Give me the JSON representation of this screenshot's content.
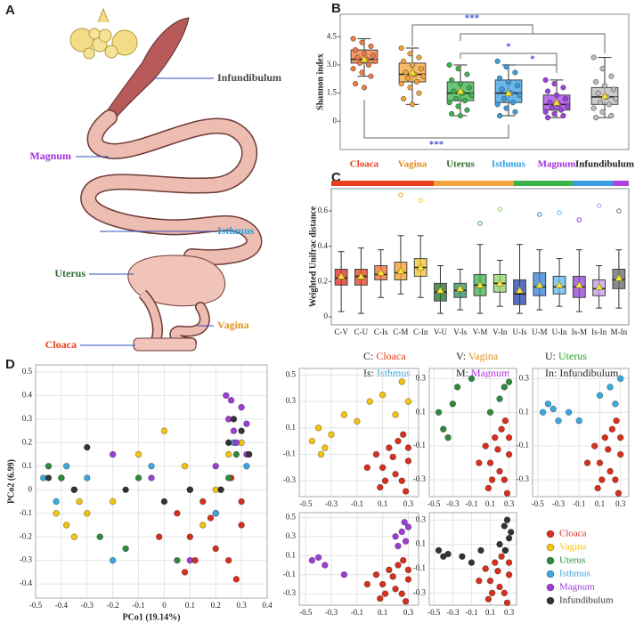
{
  "panel_labels": [
    "A",
    "B",
    "C",
    "D"
  ],
  "anatomy": {
    "labels": [
      {
        "text": "Infundibulum",
        "color": "#4a4a4a"
      },
      {
        "text": "Magnum",
        "color": "#a030e0"
      },
      {
        "text": "Isthmus",
        "color": "#2aa0e0"
      },
      {
        "text": "Uterus",
        "color": "#2e6b2e"
      },
      {
        "text": "Vagina",
        "color": "#e0901e"
      },
      {
        "text": "Cloaca",
        "color": "#e8401e"
      }
    ]
  },
  "chart_data": [
    {
      "type": "box",
      "ylabel": "Shannon index",
      "categories": [
        "Cloaca",
        "Vagina",
        "Uterus",
        "Isthmus",
        "Magnum",
        "Infundibulum"
      ],
      "label_colors": [
        "#e8401e",
        "#e0901e",
        "#2e6b2e",
        "#2aa0e0",
        "#a030e0",
        "#222222"
      ],
      "colors": [
        "#f07a40",
        "#f3a33a",
        "#3cb34a",
        "#3a9ee0",
        "#a040e0",
        "#bbbbbb"
      ],
      "ylim": [
        -1.5,
        5.7
      ],
      "yticks": [
        0,
        1.5,
        {
          "value": 3,
          "label": "3.0"
        },
        4.5
      ],
      "annotations": [
        "***",
        "*",
        "*",
        "***"
      ],
      "boxes": [
        {
          "whislo": 2.4,
          "q1": 3.1,
          "med": 3.3,
          "q3": 3.8,
          "whishi": 4.4,
          "mean": 3.3,
          "points": [
            4.4,
            4.2,
            4.0,
            3.8,
            3.6,
            3.5,
            3.4,
            3.3,
            3.2,
            3.1,
            3.0,
            2.8,
            2.6,
            2.4,
            2.0,
            1.8
          ]
        },
        {
          "whislo": 0.9,
          "q1": 2.1,
          "med": 2.5,
          "q3": 3.1,
          "whishi": 3.9,
          "mean": 2.6,
          "points": [
            3.9,
            3.6,
            3.4,
            3.2,
            3.0,
            2.8,
            2.6,
            2.5,
            2.4,
            2.3,
            2.1,
            2.0,
            1.8,
            1.5,
            1.2,
            0.9
          ]
        },
        {
          "whislo": 0.3,
          "q1": 1.1,
          "med": 1.5,
          "q3": 2.1,
          "whishi": 3.0,
          "mean": 1.6,
          "points": [
            3.0,
            2.8,
            2.5,
            2.2,
            2.0,
            1.8,
            1.6,
            1.5,
            1.4,
            1.2,
            1.1,
            1.0,
            0.8,
            0.6,
            0.4,
            0.3
          ]
        },
        {
          "whislo": 0.3,
          "q1": 1.0,
          "med": 1.5,
          "q3": 2.2,
          "whishi": 3.0,
          "mean": 1.5,
          "points": [
            3.2,
            2.9,
            2.6,
            2.3,
            2.1,
            1.9,
            1.7,
            1.5,
            1.4,
            1.2,
            1.0,
            0.9,
            0.7,
            0.5,
            0.3
          ]
        },
        {
          "whislo": 0.2,
          "q1": 0.6,
          "med": 0.9,
          "q3": 1.4,
          "whishi": 2.2,
          "mean": 1.0,
          "points": [
            2.2,
            2.0,
            1.8,
            1.6,
            1.4,
            1.2,
            1.0,
            0.9,
            0.8,
            0.7,
            0.6,
            0.5,
            0.4,
            0.3,
            0.2
          ]
        },
        {
          "whislo": 0.2,
          "q1": 0.9,
          "med": 1.3,
          "q3": 1.8,
          "whishi": 3.4,
          "mean": 1.35,
          "points": [
            3.4,
            2.8,
            2.4,
            2.1,
            1.9,
            1.7,
            1.5,
            1.3,
            1.2,
            1.0,
            0.9,
            0.7,
            0.5,
            0.3,
            0.2
          ]
        }
      ]
    },
    {
      "type": "box",
      "ylabel": "Weighted Unifrac distance",
      "categories": [
        "C-V",
        "C-U",
        "C-Is",
        "C-M",
        "C-In",
        "V-U",
        "V-Is",
        "V-M",
        "V-In",
        "U-Is",
        "U-M",
        "U-In",
        "Is-M",
        "Is-In",
        "M-In"
      ],
      "colors": [
        "#d9281c",
        "#e03c1e",
        "#f06a2a",
        "#f39c2a",
        "#f2c230",
        "#1f6b2a",
        "#2e8b57",
        "#3cae4a",
        "#8fd16a",
        "#1f3fa8",
        "#2f7fd8",
        "#5fb8ee",
        "#8e3fd4",
        "#c49be8",
        "#666666"
      ],
      "ylim": [
        -0.045,
        0.726
      ],
      "yticks": [
        0,
        0.2,
        0.4,
        0.6
      ],
      "boxes": [
        {
          "whislo": 0.03,
          "q1": 0.18,
          "med": 0.22,
          "q3": 0.27,
          "whishi": 0.37,
          "mean": 0.23
        },
        {
          "whislo": 0.02,
          "q1": 0.18,
          "med": 0.23,
          "q3": 0.27,
          "whishi": 0.39,
          "mean": 0.23
        },
        {
          "whislo": 0.11,
          "q1": 0.21,
          "med": 0.24,
          "q3": 0.29,
          "whishi": 0.38,
          "mean": 0.25
        },
        {
          "whislo": 0.13,
          "q1": 0.21,
          "med": 0.25,
          "q3": 0.31,
          "whishi": 0.46,
          "mean": 0.26,
          "outliers": [
            0.69
          ]
        },
        {
          "whislo": 0.11,
          "q1": 0.23,
          "med": 0.28,
          "q3": 0.33,
          "whishi": 0.46,
          "mean": 0.28,
          "outliers": [
            0.66
          ]
        },
        {
          "whislo": 0.02,
          "q1": 0.09,
          "med": 0.14,
          "q3": 0.19,
          "whishi": 0.29,
          "mean": 0.15
        },
        {
          "whislo": 0.04,
          "q1": 0.11,
          "med": 0.15,
          "q3": 0.19,
          "whishi": 0.27,
          "mean": 0.16
        },
        {
          "whislo": 0.02,
          "q1": 0.12,
          "med": 0.18,
          "q3": 0.24,
          "whishi": 0.41,
          "mean": 0.18,
          "outliers": [
            0.53
          ]
        },
        {
          "whislo": 0.06,
          "q1": 0.14,
          "med": 0.19,
          "q3": 0.24,
          "whishi": 0.32,
          "mean": 0.19,
          "outliers": [
            0.61
          ]
        },
        {
          "whislo": 0.02,
          "q1": 0.07,
          "med": 0.13,
          "q3": 0.21,
          "whishi": 0.41,
          "mean": 0.15
        },
        {
          "whislo": 0.04,
          "q1": 0.12,
          "med": 0.17,
          "q3": 0.25,
          "whishi": 0.38,
          "mean": 0.18,
          "outliers": [
            0.58
          ]
        },
        {
          "whislo": 0.06,
          "q1": 0.13,
          "med": 0.17,
          "q3": 0.23,
          "whishi": 0.33,
          "mean": 0.18,
          "outliers": [
            0.59
          ]
        },
        {
          "whislo": 0.03,
          "q1": 0.11,
          "med": 0.17,
          "q3": 0.23,
          "whishi": 0.38,
          "mean": 0.18,
          "outliers": [
            0.55
          ]
        },
        {
          "whislo": 0.05,
          "q1": 0.12,
          "med": 0.16,
          "q3": 0.21,
          "whishi": 0.29,
          "mean": 0.17,
          "outliers": [
            0.63
          ]
        },
        {
          "whislo": 0.05,
          "q1": 0.16,
          "med": 0.21,
          "q3": 0.27,
          "whishi": 0.38,
          "mean": 0.22,
          "outliers": [
            0.6
          ]
        }
      ],
      "legend": [
        {
          "abbr": "C:",
          "name": "Cloaca",
          "color": "#e8401e"
        },
        {
          "abbr": "V:",
          "name": "Vagina",
          "color": "#e0901e"
        },
        {
          "abbr": "U:",
          "name": "Uterus",
          "color": "#2e9b2e"
        },
        {
          "abbr": "Is:",
          "name": "Isthmus",
          "color": "#2aa0e0"
        },
        {
          "abbr": "M:",
          "name": "Magnum",
          "color": "#b030e0"
        },
        {
          "abbr": "In:",
          "name": "Infundibulum",
          "color": "#222222"
        }
      ]
    },
    {
      "type": "scatter",
      "xlabel": "PCo1 (19.14%)",
      "ylabel": "PCo2 (6.99)",
      "grid": true,
      "xlim": [
        -0.5,
        0.4
      ],
      "ylim": [
        -0.46,
        0.53
      ],
      "xticks": [
        -0.5,
        -0.4,
        -0.3,
        -0.2,
        -0.1,
        0,
        0.1,
        0.2,
        0.3,
        0.4
      ],
      "yticks": [
        -0.4,
        -0.3,
        -0.2,
        -0.1,
        0,
        0.1,
        0.2,
        0.3,
        0.4,
        0.5
      ],
      "series": [
        {
          "name": "Cloaca",
          "color": "#d7301f",
          "x": [
            0.05,
            0.1,
            0.15,
            0.2,
            0.25,
            0.28,
            0.3,
            0.22,
            0.12,
            0.18,
            0.26,
            0.08,
            -0.02,
            0.3
          ],
          "y": [
            -0.1,
            -0.2,
            -0.05,
            -0.25,
            -0.3,
            -0.38,
            -0.15,
            0.0,
            -0.3,
            -0.12,
            0.05,
            -0.35,
            -0.2,
            -0.05
          ]
        },
        {
          "name": "Vagina",
          "color": "#f2c40f",
          "x": [
            -0.42,
            -0.38,
            -0.35,
            -0.33,
            -0.4,
            -0.3,
            -0.1,
            0.0,
            0.08,
            0.2,
            0.25,
            0.3,
            -0.2,
            0.15
          ],
          "y": [
            -0.1,
            -0.15,
            -0.2,
            -0.05,
            0.05,
            -0.1,
            0.15,
            0.25,
            0.1,
            0.0,
            0.15,
            0.2,
            -0.05,
            -0.15
          ]
        },
        {
          "name": "Uterus",
          "color": "#2e8b3e",
          "x": [
            -0.45,
            -0.4,
            -0.35,
            -0.25,
            -0.1,
            0.05,
            0.2,
            0.25,
            -0.15,
            0.28
          ],
          "y": [
            0.1,
            0.05,
            0.0,
            -0.2,
            0.05,
            -0.3,
            -0.1,
            0.05,
            -0.25,
            0.15
          ]
        },
        {
          "name": "Isthmus",
          "color": "#3aa8dd",
          "x": [
            -0.47,
            -0.42,
            -0.38,
            -0.3,
            -0.2,
            -0.05,
            0.1,
            0.2,
            0.27,
            0.32
          ],
          "y": [
            0.05,
            -0.05,
            0.1,
            0.05,
            -0.3,
            0.1,
            0.0,
            -0.1,
            0.2,
            0.1
          ]
        },
        {
          "name": "Magnum",
          "color": "#9b3fd4",
          "x": [
            0.25,
            0.27,
            0.28,
            0.3,
            0.32,
            0.26,
            0.2,
            -0.2,
            -0.05,
            0.1,
            0.32,
            0.24
          ],
          "y": [
            0.3,
            0.25,
            0.2,
            0.35,
            0.28,
            0.38,
            0.1,
            0.15,
            0.05,
            -0.3,
            0.15,
            0.4
          ]
        },
        {
          "name": "Infundibulum",
          "color": "#333333",
          "x": [
            -0.45,
            -0.35,
            -0.15,
            0.0,
            0.1,
            0.25,
            0.27,
            0.3,
            0.33,
            -0.3,
            0.22
          ],
          "y": [
            0.05,
            0.0,
            0.0,
            -0.05,
            0.0,
            0.2,
            0.3,
            0.25,
            0.15,
            0.18,
            0.0
          ]
        }
      ]
    },
    {
      "type": "scatter",
      "grid": true,
      "xlim": [
        -0.55,
        0.38
      ],
      "ylim": [
        -0.42,
        0.55
      ],
      "xticks": [
        -0.5,
        -0.3,
        -0.1,
        0.1,
        0.3
      ],
      "yticks": [
        -0.3,
        -0.1,
        0.1,
        0.3,
        0.5
      ],
      "series": [
        {
          "color": "#d7301f",
          "x": [
            0.05,
            0.1,
            0.15,
            0.2,
            0.25,
            0.28,
            0.3,
            0.22,
            0.12,
            0.18,
            0.26,
            0.08,
            -0.02,
            0.3
          ],
          "y": [
            -0.1,
            -0.2,
            -0.05,
            -0.25,
            -0.3,
            -0.38,
            -0.15,
            0.0,
            -0.3,
            -0.12,
            0.05,
            -0.35,
            -0.2,
            -0.05
          ]
        },
        {
          "color": "#f2c40f",
          "x": [
            -0.45,
            -0.4,
            -0.35,
            -0.3,
            -0.2,
            -0.1,
            0.0,
            0.1,
            0.2,
            0.3,
            0.25,
            -0.38
          ],
          "y": [
            0.0,
            0.1,
            -0.05,
            0.05,
            0.2,
            0.15,
            0.3,
            0.35,
            0.2,
            0.3,
            0.45,
            -0.1
          ]
        }
      ]
    },
    {
      "type": "scatter",
      "grid": true,
      "xlim": [
        -0.55,
        0.38
      ],
      "ylim": [
        -0.4,
        0.36
      ],
      "xticks": [
        -0.5,
        -0.3,
        -0.1,
        0.1,
        0.3
      ],
      "yticks": [
        -0.3,
        -0.1,
        0.1,
        0.3
      ],
      "series": [
        {
          "color": "#d7301f",
          "x": [
            0.05,
            0.1,
            0.15,
            0.2,
            0.25,
            0.28,
            0.3,
            0.22,
            0.12,
            0.18,
            0.26,
            0.08,
            -0.02,
            0.3
          ],
          "y": [
            -0.1,
            -0.2,
            -0.05,
            -0.25,
            -0.3,
            -0.38,
            -0.15,
            0.0,
            -0.3,
            -0.12,
            0.05,
            -0.35,
            -0.2,
            -0.05
          ]
        },
        {
          "color": "#2e8b3e",
          "x": [
            -0.45,
            -0.4,
            -0.35,
            -0.3,
            -0.25,
            -0.1,
            0.1,
            0.2,
            0.25,
            0.3
          ],
          "y": [
            0.1,
            0.0,
            -0.05,
            0.15,
            0.25,
            0.3,
            0.1,
            0.18,
            0.25,
            0.28
          ]
        }
      ]
    },
    {
      "type": "scatter",
      "grid": true,
      "xlim": [
        -0.55,
        0.38
      ],
      "ylim": [
        -0.4,
        0.36
      ],
      "xticks": [
        -0.5,
        -0.3,
        -0.1,
        0.1,
        0.3
      ],
      "yticks": [
        -0.3,
        -0.1,
        0.1,
        0.3
      ],
      "series": [
        {
          "color": "#d7301f",
          "x": [
            0.05,
            0.1,
            0.15,
            0.2,
            0.25,
            0.28,
            0.3,
            0.22,
            0.12,
            0.18,
            0.26,
            0.08,
            -0.02,
            0.3
          ],
          "y": [
            -0.1,
            -0.2,
            -0.05,
            -0.25,
            -0.3,
            -0.38,
            -0.15,
            0.0,
            -0.3,
            -0.12,
            0.05,
            -0.35,
            -0.2,
            -0.05
          ]
        },
        {
          "color": "#3aa8dd",
          "x": [
            -0.45,
            -0.4,
            -0.3,
            -0.2,
            -0.1,
            0.1,
            0.2,
            0.25,
            0.3,
            -0.35
          ],
          "y": [
            0.1,
            0.15,
            0.05,
            0.1,
            0.05,
            0.2,
            0.25,
            0.15,
            0.3,
            0.12
          ]
        }
      ]
    },
    {
      "type": "scatter",
      "grid": true,
      "xlim": [
        -0.55,
        0.38
      ],
      "ylim": [
        -0.42,
        0.55
      ],
      "xticks": [
        -0.5,
        -0.3,
        -0.1,
        0.1,
        0.3
      ],
      "yticks": [
        -0.3,
        -0.1,
        0.1,
        0.3,
        0.5
      ],
      "series": [
        {
          "color": "#d7301f",
          "x": [
            0.05,
            0.1,
            0.15,
            0.2,
            0.25,
            0.28,
            0.3,
            0.22,
            0.12,
            0.18,
            0.26,
            0.08,
            -0.02,
            0.3
          ],
          "y": [
            -0.1,
            -0.2,
            -0.05,
            -0.25,
            -0.3,
            -0.38,
            -0.15,
            0.0,
            -0.3,
            -0.12,
            0.05,
            -0.35,
            -0.2,
            -0.05
          ]
        },
        {
          "color": "#9b3fd4",
          "x": [
            -0.45,
            -0.4,
            -0.35,
            -0.2,
            0.2,
            0.25,
            0.28,
            0.3,
            0.27,
            0.22
          ],
          "y": [
            0.05,
            0.08,
            0.0,
            -0.1,
            0.3,
            0.35,
            0.25,
            0.4,
            0.45,
            0.2
          ]
        }
      ]
    },
    {
      "type": "scatter",
      "grid": true,
      "xlim": [
        -0.55,
        0.38
      ],
      "ylim": [
        -0.4,
        0.36
      ],
      "xticks": [
        -0.5,
        -0.3,
        -0.1,
        0.1,
        0.3
      ],
      "yticks": [
        -0.3,
        -0.1,
        0.1,
        0.3
      ],
      "series": [
        {
          "color": "#d7301f",
          "x": [
            0.05,
            0.1,
            0.15,
            0.2,
            0.25,
            0.28,
            0.3,
            0.22,
            0.12,
            0.18,
            0.26,
            0.08,
            -0.02,
            0.3
          ],
          "y": [
            -0.1,
            -0.2,
            -0.05,
            -0.25,
            -0.3,
            -0.38,
            -0.15,
            0.0,
            -0.3,
            -0.12,
            0.05,
            -0.35,
            -0.2,
            -0.05
          ]
        },
        {
          "color": "#333333",
          "x": [
            -0.45,
            -0.4,
            -0.35,
            -0.2,
            -0.1,
            0.0,
            0.2,
            0.25,
            0.28,
            0.3,
            0.32,
            0.26
          ],
          "y": [
            0.05,
            0.0,
            0.02,
            0.0,
            -0.05,
            0.05,
            0.1,
            0.25,
            0.3,
            0.15,
            0.2,
            0.05
          ]
        }
      ]
    }
  ]
}
